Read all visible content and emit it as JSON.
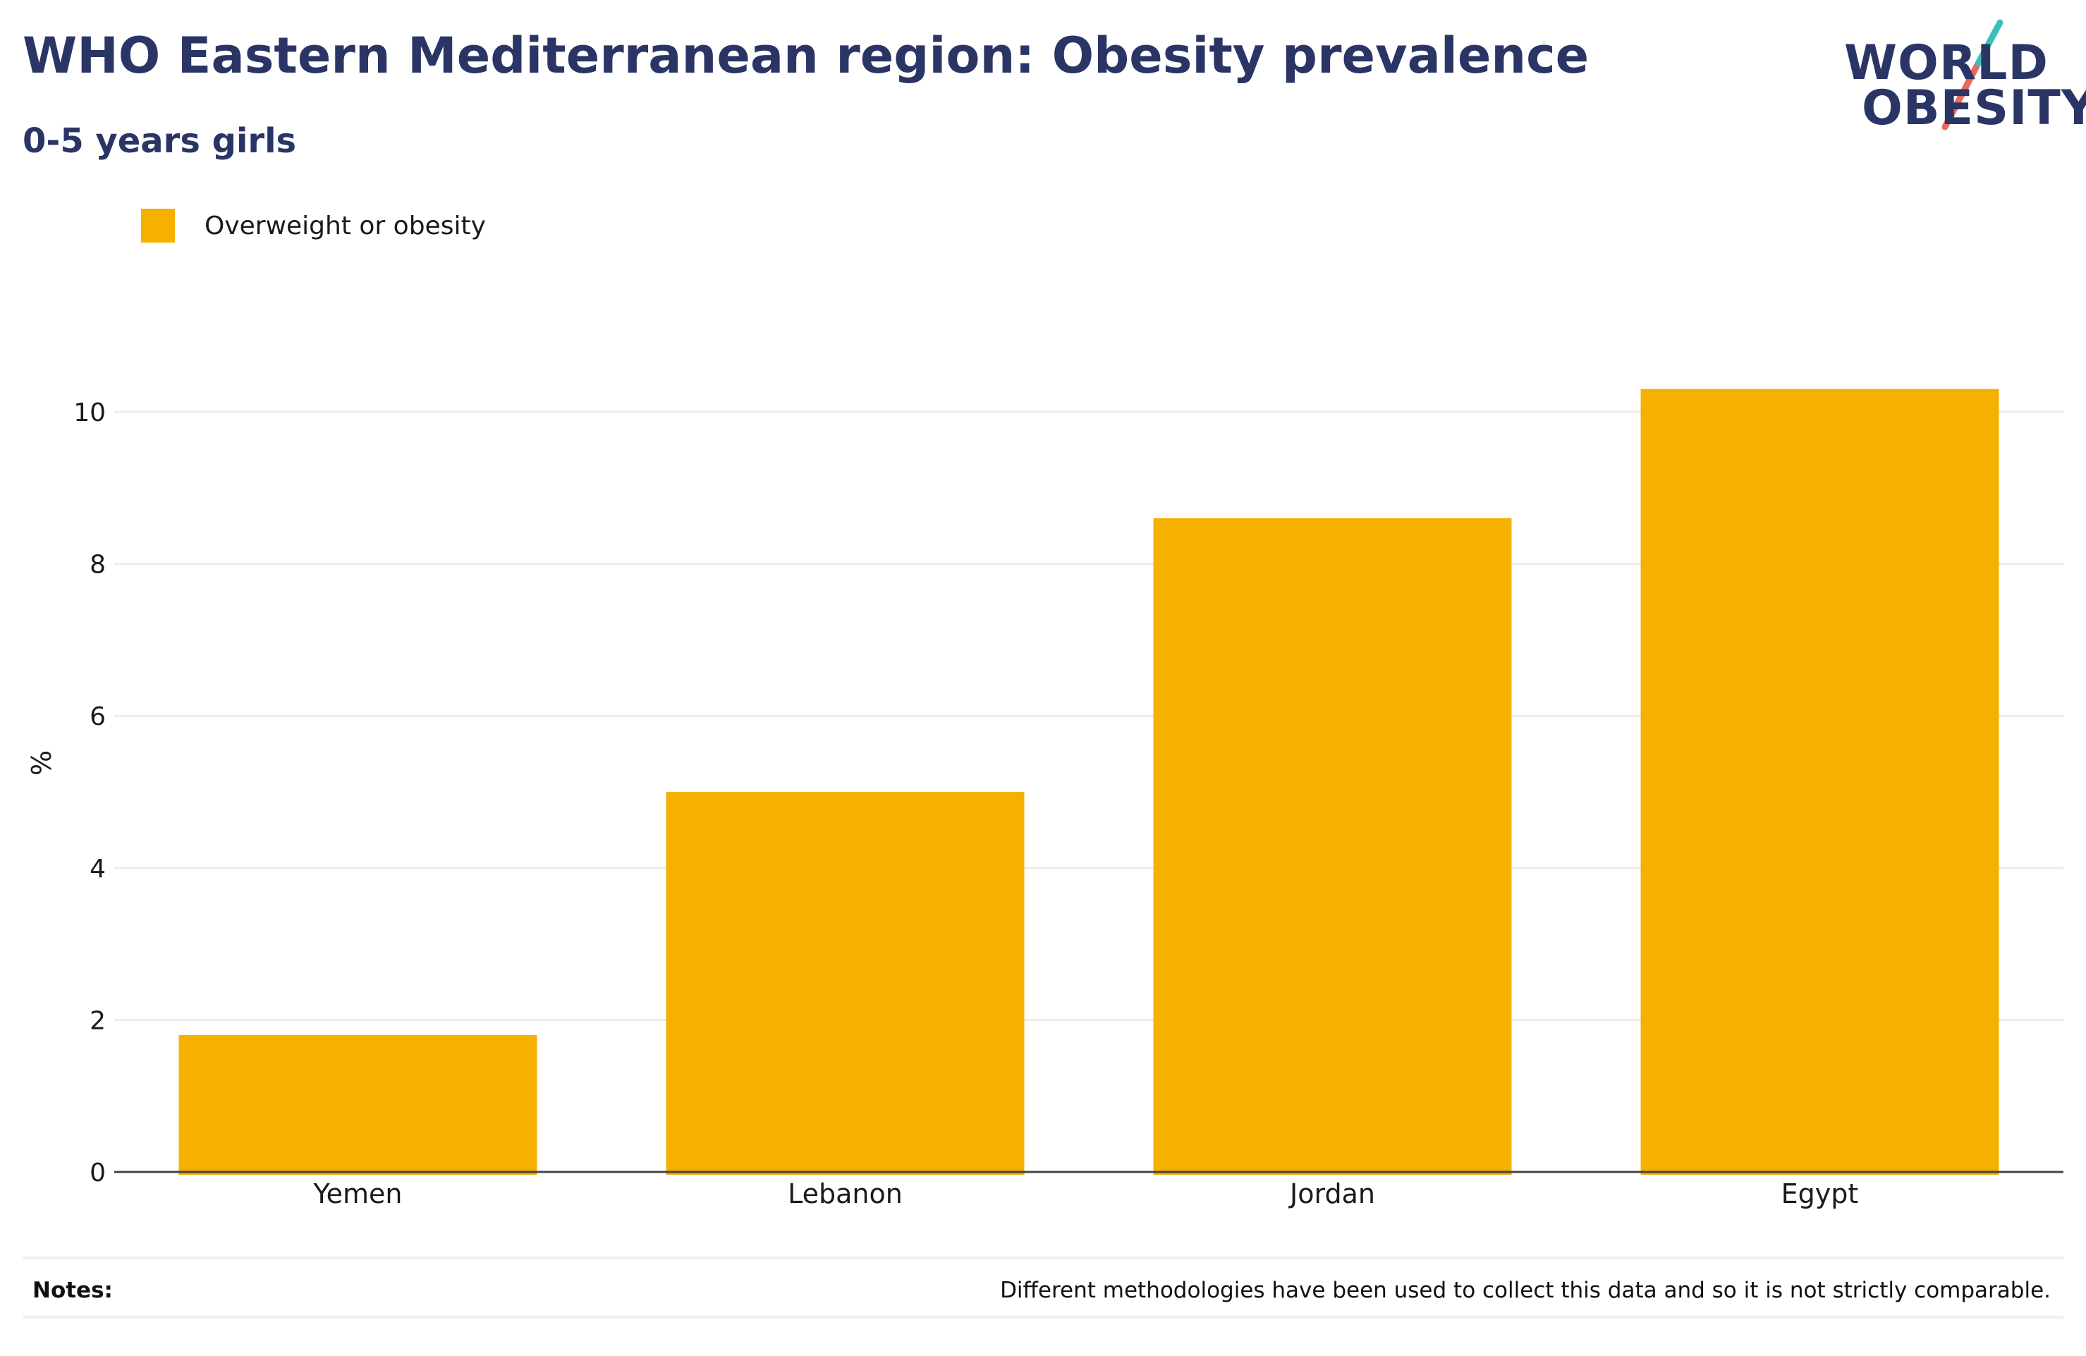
{
  "title": "WHO Eastern Mediterranean region: Obesity prevalence",
  "subtitle": "0-5 years girls",
  "logo": {
    "line1": "WORLD",
    "line2": "OBESITY",
    "colors": {
      "text": "#2b3565",
      "slash_top": "#3cbfb8",
      "slash_bottom": "#ea6a5a"
    }
  },
  "legend": {
    "label": "Overweight or obesity",
    "color": "#f5b000"
  },
  "chart_data": {
    "type": "bar",
    "categories": [
      "Yemen",
      "Lebanon",
      "Jordan",
      "Egypt"
    ],
    "series": [
      {
        "name": "Overweight or obesity",
        "values": [
          1.8,
          5.0,
          8.6,
          10.3
        ],
        "color": "#f5b000"
      }
    ],
    "xlabel": "",
    "ylabel": "%",
    "ylim": [
      0,
      11
    ],
    "yticks": [
      0,
      2,
      4,
      6,
      8,
      10
    ],
    "grid": true,
    "legend_position": "top-left"
  },
  "notes": {
    "label": "Notes:",
    "text": "Different methodologies have been used to collect this data and so it is not strictly comparable."
  }
}
